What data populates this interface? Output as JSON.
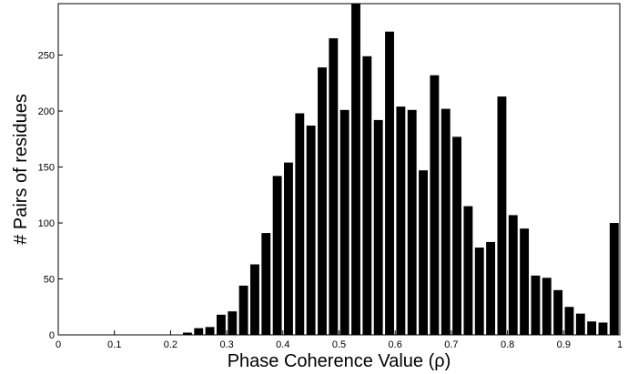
{
  "chart_data": {
    "type": "bar",
    "xlabel": "Phase Coherence Value (ρ)",
    "ylabel": "# Pairs of residues",
    "xlim": [
      0,
      1
    ],
    "ylim": [
      0,
      296
    ],
    "grid": false,
    "bar_color": "#000000",
    "bin_width": 0.02,
    "x": [
      0.01,
      0.03,
      0.05,
      0.07,
      0.09,
      0.11,
      0.13,
      0.15,
      0.17,
      0.19,
      0.21,
      0.23,
      0.25,
      0.27,
      0.29,
      0.31,
      0.33,
      0.35,
      0.37,
      0.39,
      0.41,
      0.43,
      0.45,
      0.47,
      0.49,
      0.51,
      0.53,
      0.55,
      0.57,
      0.59,
      0.61,
      0.63,
      0.65,
      0.67,
      0.69,
      0.71,
      0.73,
      0.75,
      0.77,
      0.79,
      0.81,
      0.83,
      0.85,
      0.87,
      0.89,
      0.91,
      0.93,
      0.95,
      0.97,
      0.99
    ],
    "values": [
      0,
      0,
      0,
      0,
      0,
      0,
      0,
      0,
      0,
      0,
      0,
      2,
      6,
      7,
      18,
      21,
      44,
      63,
      91,
      142,
      154,
      198,
      187,
      239,
      265,
      201,
      296,
      249,
      192,
      271,
      204,
      201,
      147,
      232,
      202,
      177,
      115,
      78,
      83,
      213,
      107,
      95,
      53,
      51,
      40,
      25,
      19,
      12,
      11,
      100
    ],
    "xticks": [
      "0",
      "0.1",
      "0.2",
      "0.3",
      "0.4",
      "0.5",
      "0.6",
      "0.7",
      "0.8",
      "0.9",
      "1"
    ],
    "yticks": [
      "0",
      "50",
      "100",
      "150",
      "200",
      "250"
    ]
  }
}
